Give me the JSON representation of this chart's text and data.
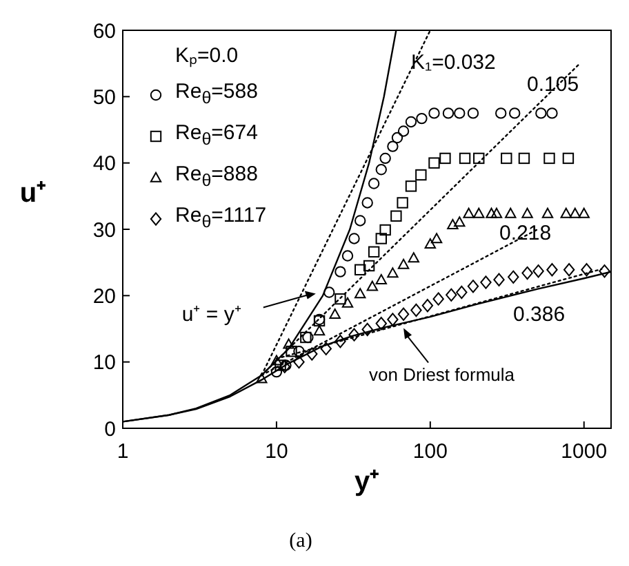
{
  "chart_data": {
    "type": "scatter",
    "xlabel": "y⁺",
    "ylabel": "u⁺",
    "legend_title": "Kₚ=0.0",
    "legend": "top left",
    "log": "x",
    "xlim": [
      1,
      1500
    ],
    "xticks": [
      1,
      10,
      100,
      1000
    ],
    "ylim": [
      0,
      60
    ],
    "yticks": [
      0,
      10,
      20,
      30,
      40,
      50,
      60
    ],
    "series": [
      {
        "name": "Re$_{θ}$=588",
        "marker": "circle",
        "color": "#000000",
        "x": [
          10,
          11.5,
          14,
          16,
          19,
          22,
          26,
          29,
          32,
          35,
          39,
          43,
          48,
          51,
          57,
          61,
          67,
          75,
          88,
          106,
          131,
          155,
          190,
          288,
          354,
          525,
          620
        ],
        "values": [
          8.5,
          9.5,
          11.6,
          13.7,
          16.4,
          20.5,
          23.6,
          26,
          28.6,
          31.3,
          34,
          36.9,
          39,
          40.7,
          42.5,
          43.8,
          44.8,
          46.2,
          46.7,
          47.5,
          47.5,
          47.5,
          47.5,
          47.5,
          47.5,
          47.5,
          47.5
        ]
      },
      {
        "name": "Re$_{θ}$=674",
        "marker": "square",
        "color": "#000000",
        "x": [
          10.6,
          12.5,
          15.5,
          19,
          26,
          35,
          40,
          43,
          48,
          51,
          60,
          66,
          75,
          87,
          106,
          125,
          168,
          207,
          313,
          408,
          595,
          790
        ],
        "values": [
          9.5,
          11.6,
          13.7,
          16.2,
          19.5,
          23.9,
          24.5,
          26.6,
          28.6,
          29.9,
          32,
          34,
          36.5,
          38.2,
          40,
          40.7,
          40.7,
          40.7,
          40.7,
          40.7,
          40.7,
          40.7
        ]
      },
      {
        "name": "Re$_{θ}$=888",
        "marker": "triangle",
        "color": "#000000",
        "x": [
          8,
          10,
          12,
          19,
          24,
          29,
          35,
          42,
          48,
          57,
          67,
          78,
          100,
          110,
          140,
          155,
          178,
          207,
          250,
          270,
          333,
          428,
          580,
          765,
          875,
          1000
        ],
        "values": [
          7.5,
          10.2,
          12.7,
          14.7,
          17.2,
          18.9,
          20.3,
          21.4,
          22.4,
          23.4,
          24.7,
          25.7,
          27.8,
          28.6,
          30.7,
          31.1,
          32.4,
          32.4,
          32.4,
          32.4,
          32.4,
          32.4,
          32.4,
          32.4,
          32.4,
          32.4
        ]
      },
      {
        "name": "Re$_{θ}$=1117",
        "marker": "diamond",
        "color": "#000000",
        "x": [
          11.3,
          14,
          17,
          21,
          26,
          32,
          39,
          48,
          57,
          67,
          81,
          96,
          113,
          137,
          160,
          190,
          230,
          280,
          347,
          428,
          505,
          620,
          800,
          1040,
          1360
        ],
        "values": [
          9.3,
          10,
          11.2,
          12,
          13.1,
          14.1,
          14.9,
          15.8,
          16.4,
          17.2,
          17.8,
          18.5,
          19.5,
          20.1,
          20.5,
          21.4,
          22,
          22.4,
          22.8,
          23.4,
          23.7,
          23.9,
          23.9,
          23.9,
          23.7
        ]
      },
      {
        "type": "line",
        "marker": "none",
        "line_style": "solid",
        "color": "#000000",
        "x": [
          1,
          2,
          3,
          5,
          8,
          12,
          20,
          30,
          40,
          50,
          60
        ],
        "values": [
          1,
          2,
          3,
          5,
          8,
          12,
          20,
          30,
          40,
          50,
          60
        ]
      },
      {
        "type": "line",
        "marker": "none",
        "line_style": "solid",
        "color": "#000000",
        "x": [
          1,
          2,
          3,
          5,
          8,
          12,
          20,
          30,
          50,
          100,
          200,
          500,
          1000,
          1500
        ],
        "values": [
          1,
          2,
          2.9,
          4.8,
          7.3,
          9.8,
          12.4,
          13.8,
          15.2,
          16.8,
          18.7,
          21,
          22.6,
          23.6
        ]
      },
      {
        "type": "line",
        "marker": "none",
        "line_style": "dotted",
        "color": "#000000",
        "x": [
          8,
          100
        ],
        "values": [
          8,
          60
        ]
      },
      {
        "type": "line",
        "marker": "none",
        "line_style": "dotted",
        "color": "#000000",
        "x": [
          8,
          940
        ],
        "values": [
          8,
          55
        ]
      },
      {
        "type": "line",
        "marker": "none",
        "line_style": "dotted",
        "color": "#000000",
        "x": [
          8,
          500
        ],
        "values": [
          8,
          30
        ]
      },
      {
        "type": "line",
        "marker": "none",
        "line_style": "dotted",
        "color": "#000000",
        "x": [
          10,
          1300
        ],
        "values": [
          10.5,
          24
        ]
      }
    ],
    "annotations": [
      "K₁=0.032",
      "0.105",
      "0.218",
      "0.386",
      {
        "text": "u⁺ = y⁺",
        "x": 18,
        "y": 20.3
      },
      {
        "text": "von Driest formula",
        "x": 67,
        "y": 15.1
      },
      "(a)"
    ]
  }
}
